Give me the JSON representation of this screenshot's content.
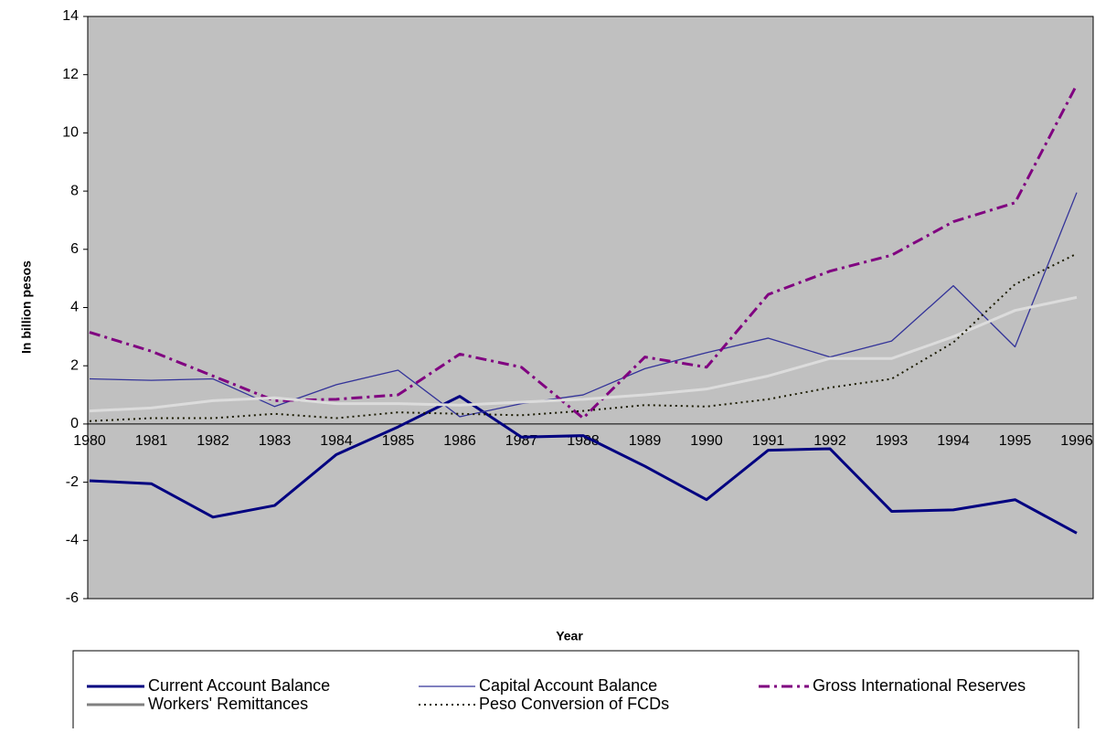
{
  "chart_data": {
    "type": "line",
    "x_label": "Year",
    "y_label": "In billion pesos",
    "categories": [
      "1980",
      "1981",
      "1982",
      "1983",
      "1984",
      "1985",
      "1986",
      "1987",
      "1988",
      "1989",
      "1990",
      "1991",
      "1992",
      "1993",
      "1994",
      "1995",
      "1996"
    ],
    "ylim": [
      -6,
      14
    ],
    "yticks": [
      -6,
      -4,
      -2,
      0,
      2,
      4,
      6,
      8,
      10,
      12,
      14
    ],
    "series": [
      {
        "name": "Current Account Balance",
        "color": "#000080",
        "width": 3,
        "dash": "",
        "values": [
          -1.95,
          -2.05,
          -3.2,
          -2.8,
          -1.05,
          -0.1,
          0.95,
          -0.45,
          -0.4,
          -1.45,
          -2.6,
          -0.9,
          -0.85,
          -3.0,
          -2.95,
          -2.6,
          -3.75
        ]
      },
      {
        "name": "Capital Account Balance",
        "color": "#333399",
        "width": 1.3,
        "dash": "",
        "values": [
          1.55,
          1.5,
          1.55,
          0.6,
          1.35,
          1.85,
          0.25,
          0.7,
          1.0,
          1.9,
          2.45,
          2.95,
          2.3,
          2.85,
          4.75,
          2.65,
          7.95
        ]
      },
      {
        "name": "Gross International Reserves",
        "color": "#800080",
        "width": 3,
        "dash": "12 5 3 5",
        "values": [
          3.15,
          2.5,
          1.65,
          0.8,
          0.85,
          1.0,
          2.4,
          1.95,
          0.2,
          2.3,
          1.95,
          4.45,
          5.25,
          5.8,
          6.95,
          7.6,
          11.65
        ]
      },
      {
        "name": "Workers' Remittances",
        "color": "#dcdcdc",
        "width": 3,
        "dash": "",
        "values": [
          0.45,
          0.55,
          0.8,
          0.9,
          0.7,
          0.7,
          0.65,
          0.75,
          0.85,
          1.0,
          1.2,
          1.65,
          2.25,
          2.25,
          3.0,
          3.9,
          4.35
        ]
      },
      {
        "name": "Peso Conversion of FCDs",
        "color": "#1a1a00",
        "width": 2,
        "dash": "2 4",
        "values": [
          0.1,
          0.2,
          0.2,
          0.35,
          0.2,
          0.4,
          0.35,
          0.3,
          0.45,
          0.65,
          0.6,
          0.85,
          1.25,
          1.55,
          2.8,
          4.8,
          5.85
        ]
      }
    ]
  }
}
